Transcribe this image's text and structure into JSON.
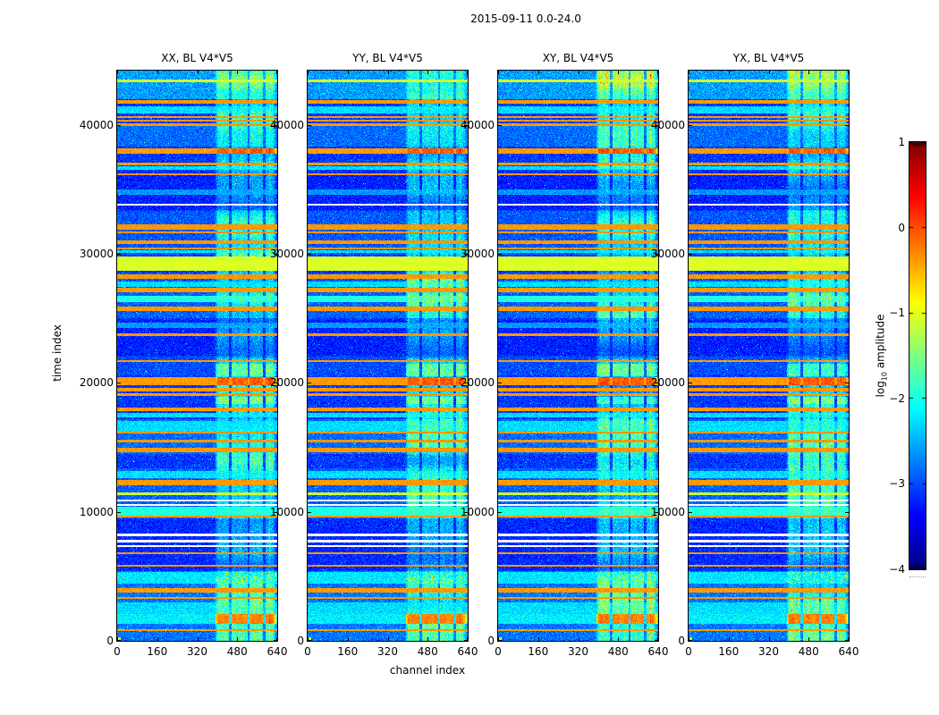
{
  "figure": {
    "suptitle": "2015-09-11 0.0-24.0",
    "xlabel": "channel index",
    "ylabel": "time index"
  },
  "chart_data": {
    "type": "heatmap",
    "title": "2015-09-11 0.0-24.0",
    "xlabel": "channel index",
    "ylabel": "time index",
    "xlim": [
      0,
      640
    ],
    "ylim": [
      0,
      44200
    ],
    "xticks": [
      0,
      160,
      320,
      480,
      640
    ],
    "yticks": [
      0,
      10000,
      20000,
      30000,
      40000
    ],
    "grid": false,
    "colormap": "jet",
    "panels": [
      {
        "id": "XX",
        "title": "XX, BL V4*V5",
        "seed": 101
      },
      {
        "id": "YY",
        "title": "YY, BL V4*V5",
        "seed": 202
      },
      {
        "id": "XY",
        "title": "XY, BL V4*V5",
        "seed": 303
      },
      {
        "id": "YX",
        "title": "YX, BL V4*V5",
        "seed": 404
      }
    ],
    "colorbar": {
      "label": "log10 amplitude",
      "label_pre": "log",
      "label_sub": "10",
      "label_post": " amplitude",
      "lim": [
        -4,
        1
      ],
      "ticks": [
        "1",
        "0",
        "−1",
        "−2",
        "−3",
        "−4"
      ],
      "tick_values": [
        1,
        0,
        -1,
        -2,
        -3,
        -4
      ]
    },
    "noise_floor": -3.38,
    "band": {
      "ch_start": 388,
      "ch_end": 636,
      "fade_in": [
        388,
        400
      ],
      "fade_out": [
        618,
        636
      ],
      "gaps": [
        450,
        523,
        586
      ],
      "gap_half": 4,
      "bright_col": 607
    },
    "band_dim": [
      [
        21900,
        25000,
        0.6
      ],
      [
        33400,
        36600,
        0.65
      ],
      [
        5400,
        9500,
        0.75
      ]
    ],
    "band_boost": [
      [
        29700,
        31600,
        1.3
      ],
      [
        42800,
        44200,
        1.25
      ],
      [
        13300,
        14500,
        1.25
      ],
      [
        26000,
        26900,
        1.2
      ]
    ],
    "bg_regions": [
      [
        42000,
        44200,
        0.5
      ],
      [
        38300,
        39900,
        0.25
      ],
      [
        29900,
        33300,
        0.15
      ],
      [
        25000,
        28500,
        0.2
      ],
      [
        20600,
        22000,
        0.1
      ],
      [
        14500,
        17200,
        0.25
      ],
      [
        9500,
        13400,
        0.2
      ],
      [
        0,
        5400,
        0.3
      ],
      [
        33400,
        36400,
        -0.12
      ],
      [
        22100,
        24900,
        -0.12
      ],
      [
        5500,
        9400,
        -0.08
      ]
    ],
    "stripes": [
      [
        43300,
        43480,
        "greenline"
      ],
      [
        41650,
        41920,
        "orange"
      ],
      [
        40900,
        41420,
        "cyan"
      ],
      [
        40520,
        40700,
        "orange"
      ],
      [
        40230,
        40400,
        "orange"
      ],
      [
        39930,
        40100,
        "orange"
      ],
      [
        37780,
        38160,
        "hotline"
      ],
      [
        36880,
        37060,
        "orange"
      ],
      [
        36480,
        36800,
        "cyan"
      ],
      [
        36080,
        36260,
        "orange"
      ],
      [
        34580,
        34960,
        "cyanfaint"
      ],
      [
        33740,
        33900,
        "white"
      ],
      [
        31890,
        32300,
        "orange"
      ],
      [
        31580,
        31760,
        "orange"
      ],
      [
        30740,
        31010,
        "orange"
      ],
      [
        30340,
        30510,
        "orange"
      ],
      [
        30040,
        30260,
        "cyan"
      ],
      [
        28690,
        29760,
        "green"
      ],
      [
        28040,
        28410,
        "orange"
      ],
      [
        27440,
        27860,
        "cyan"
      ],
      [
        26990,
        27360,
        "orange"
      ],
      [
        26240,
        26760,
        "cyanbright"
      ],
      [
        25540,
        25910,
        "orange"
      ],
      [
        24240,
        24660,
        "cyanfaint"
      ],
      [
        23640,
        23810,
        "orange"
      ],
      [
        21590,
        21760,
        "orange"
      ],
      [
        20490,
        21460,
        "bandbright"
      ],
      [
        19790,
        20410,
        "hotline"
      ],
      [
        19340,
        19610,
        "orange"
      ],
      [
        18990,
        19210,
        "orange"
      ],
      [
        18340,
        18910,
        "bandbright"
      ],
      [
        17790,
        18060,
        "orange"
      ],
      [
        17290,
        17660,
        "cyan"
      ],
      [
        16240,
        17010,
        "cyan"
      ],
      [
        16040,
        16210,
        "orange"
      ],
      [
        15390,
        15560,
        "orange"
      ],
      [
        14640,
        14960,
        "orange"
      ],
      [
        12640,
        13160,
        "cyan"
      ],
      [
        12040,
        12460,
        "orange"
      ],
      [
        11290,
        11510,
        "greenline"
      ],
      [
        10790,
        10960,
        "white"
      ],
      [
        10440,
        10610,
        "white"
      ],
      [
        9640,
        10410,
        "cyanbright"
      ],
      [
        9540,
        9700,
        "orange"
      ],
      [
        8140,
        8310,
        "white"
      ],
      [
        7640,
        7810,
        "white"
      ],
      [
        7240,
        7410,
        "white"
      ],
      [
        6690,
        6860,
        "orange"
      ],
      [
        5740,
        5910,
        "orange"
      ],
      [
        4440,
        5310,
        "cyanspeckle"
      ],
      [
        3740,
        4060,
        "orange"
      ],
      [
        3240,
        3410,
        "orange"
      ],
      [
        2840,
        3010,
        "cyan"
      ],
      [
        2090,
        2810,
        "cyan"
      ],
      [
        1290,
        2060,
        "hotband"
      ],
      [
        740,
        910,
        "orange"
      ]
    ]
  }
}
